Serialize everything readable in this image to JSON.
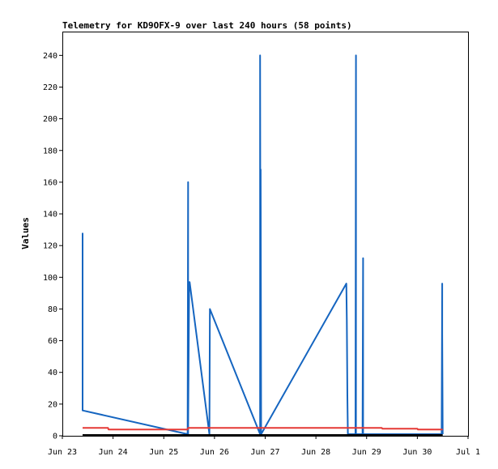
{
  "chart_data": {
    "type": "line",
    "title": "Telemetry for KD9OFX-9 over last 240 hours (58 points)",
    "xlabel": "",
    "ylabel": "Values",
    "xlim": [
      0,
      8
    ],
    "ylim": [
      0,
      255
    ],
    "x_ticks": [
      {
        "value": 0,
        "label": "Jun 23"
      },
      {
        "value": 1,
        "label": "Jun 24"
      },
      {
        "value": 2,
        "label": "Jun 25"
      },
      {
        "value": 3,
        "label": "Jun 26"
      },
      {
        "value": 4,
        "label": "Jun 27"
      },
      {
        "value": 5,
        "label": "Jun 28"
      },
      {
        "value": 6,
        "label": "Jun 29"
      },
      {
        "value": 7,
        "label": "Jun 30"
      },
      {
        "value": 8,
        "label": "Jul 1"
      }
    ],
    "y_ticks": [
      0,
      20,
      40,
      60,
      80,
      100,
      120,
      140,
      160,
      180,
      200,
      220,
      240
    ],
    "grid": false,
    "legend": "none",
    "series": [
      {
        "color": "#1565c0",
        "x": [
          0.4,
          0.4,
          0.4,
          2.47,
          2.48,
          2.48,
          2.5,
          2.51,
          2.9,
          2.91,
          2.91,
          3.9,
          3.9,
          3.91,
          3.91,
          3.92,
          5.6,
          5.61,
          5.62,
          5.63,
          5.78,
          5.79,
          5.79,
          5.92,
          5.93,
          5.93,
          7.48,
          7.49,
          7.49,
          7.5
        ],
        "y": [
          128,
          16,
          16,
          1,
          160,
          1,
          97,
          97,
          1,
          80,
          80,
          1,
          240,
          1,
          168,
          1,
          96,
          73,
          25,
          1,
          1,
          240,
          1,
          1,
          112,
          1,
          1,
          96,
          64,
          1
        ]
      },
      {
        "color": "#e53935",
        "x": [
          0.4,
          0.9,
          0.91,
          2.47,
          2.48,
          6.3,
          6.31,
          7.0,
          7.01,
          7.5
        ],
        "y": [
          5,
          5,
          4,
          4,
          5,
          5,
          4.5,
          4.5,
          4,
          4
        ]
      },
      {
        "color": "#000000",
        "x": [
          0.4,
          7.5
        ],
        "y": [
          0.5,
          0.5
        ]
      }
    ]
  }
}
